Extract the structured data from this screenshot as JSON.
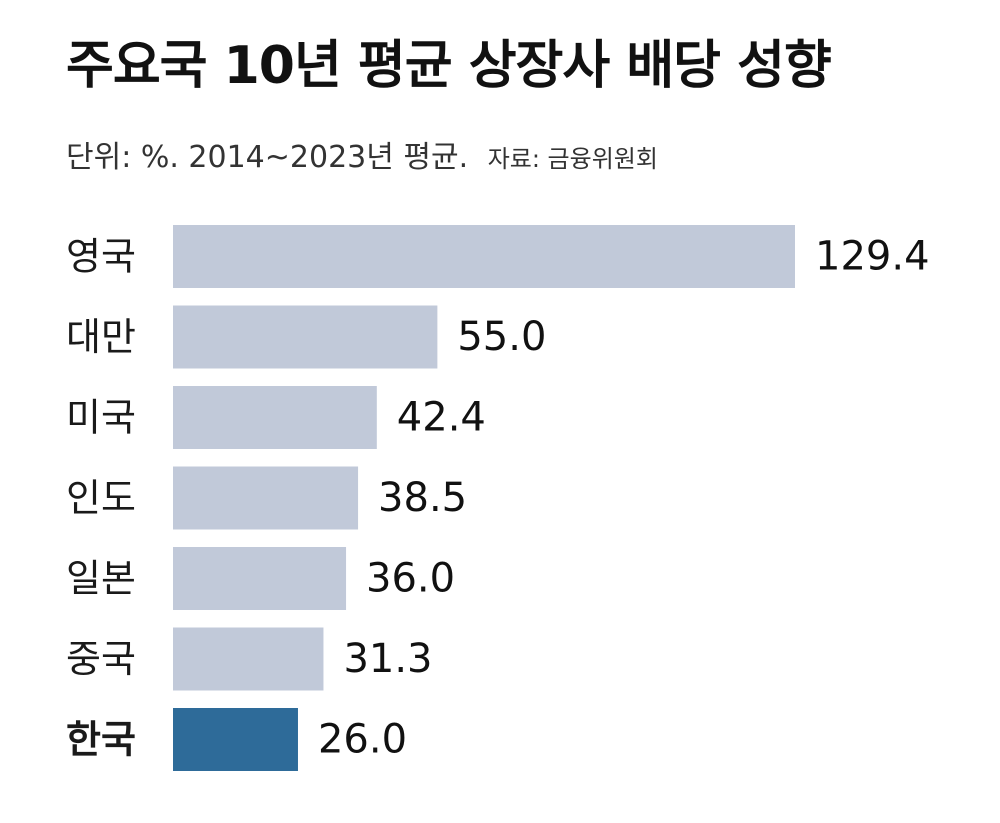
{
  "header": {
    "title": "주요국 10년 평균 상장사 배당 성향",
    "unit_note": "단위: %. 2014~2023년 평균.",
    "source": "자료: 금융위원회"
  },
  "colors": {
    "bar": "#c1c9d9",
    "highlight_bar": "#2e6b99",
    "highlight_value": "#3a74a8",
    "text": "#111111"
  },
  "chart_data": {
    "type": "bar",
    "orientation": "horizontal",
    "title": "주요국 10년 평균 상장사 배당 성향",
    "subtitle": "단위: %. 2014~2023년 평균.",
    "categories": [
      "영국",
      "대만",
      "미국",
      "인도",
      "일본",
      "중국",
      "한국"
    ],
    "values": [
      129.4,
      55.0,
      42.4,
      38.5,
      36.0,
      31.3,
      26.0
    ],
    "value_labels": [
      "129.4",
      "55.0",
      "42.4",
      "38.5",
      "36.0",
      "31.3",
      "26.0"
    ],
    "highlight": "한국",
    "xlim": [
      0,
      129.4
    ],
    "grid": false,
    "legend": "none"
  }
}
